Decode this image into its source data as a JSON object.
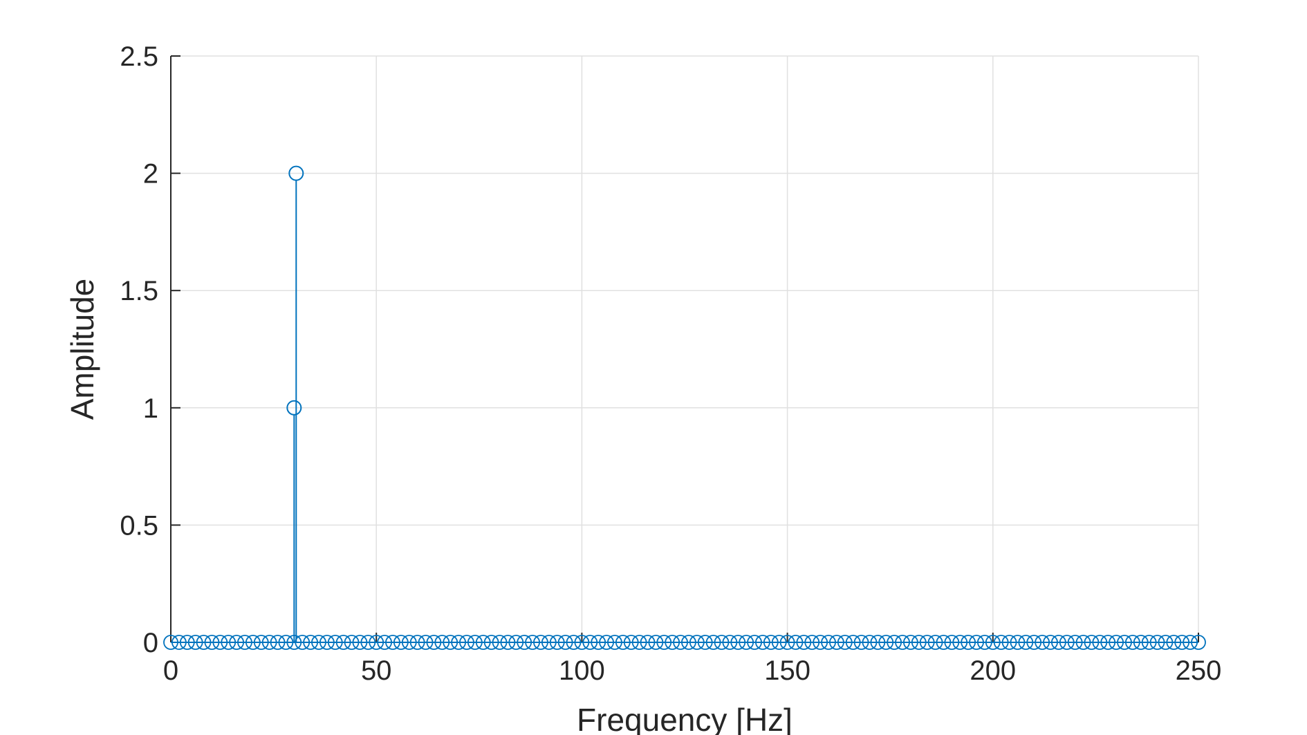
{
  "chart_data": {
    "type": "stem",
    "xlabel": "Frequency [Hz]",
    "ylabel": "Amplitude",
    "xlim": [
      0,
      250
    ],
    "ylim": [
      0,
      2.5
    ],
    "xticks": [
      0,
      50,
      100,
      150,
      200,
      250
    ],
    "xtick_labels": [
      "0",
      "50",
      "100",
      "150",
      "200",
      "250"
    ],
    "yticks": [
      0,
      0.5,
      1,
      1.5,
      2,
      2.5
    ],
    "ytick_labels": [
      "0",
      "0.5",
      "1",
      "1.5",
      "2",
      "2.5"
    ],
    "grid": true,
    "color": "#0072BD",
    "frequency_step": 2,
    "points": [
      {
        "x": 30,
        "y": 1
      },
      {
        "x": 30.5,
        "y": 2
      }
    ],
    "baseline_value": 0
  }
}
